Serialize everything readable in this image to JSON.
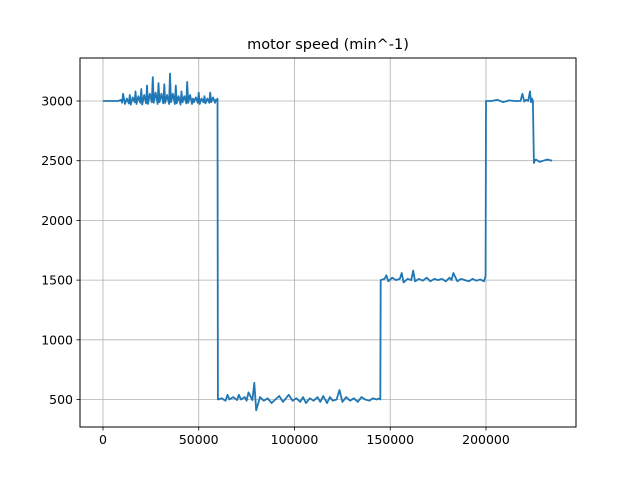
{
  "chart_data": {
    "type": "line",
    "title": "motor speed (min^-1)",
    "xlabel": "",
    "ylabel": "",
    "xlim": [
      -12000,
      247000
    ],
    "ylim": [
      270,
      3360
    ],
    "x_ticks": [
      0,
      50000,
      100000,
      150000,
      200000
    ],
    "x_tick_labels": [
      "0",
      "50000",
      "100000",
      "150000",
      "200000"
    ],
    "y_ticks": [
      500,
      1000,
      1500,
      2000,
      2500,
      3000
    ],
    "y_tick_labels": [
      "500",
      "1000",
      "1500",
      "2000",
      "2500",
      "3000"
    ],
    "grid": true,
    "line_color": "#1f77b4",
    "series": [
      {
        "x": [
          0,
          8000,
          9500,
          10000,
          10500,
          11500,
          12500,
          13500,
          14000,
          14500,
          15500,
          16500,
          17000,
          17500,
          18500,
          19500,
          20000,
          20500,
          21500,
          22500,
          23000,
          23500,
          24500,
          25500,
          26000,
          26500,
          27500,
          28500,
          29000,
          29500,
          30500,
          31500,
          32000,
          32500,
          33500,
          34500,
          35000,
          35500,
          36500,
          37500,
          38000,
          38500,
          39500,
          40500,
          41000,
          41500,
          42500,
          43500,
          44000,
          44500,
          45500,
          46500,
          47000,
          47500,
          48500,
          49500,
          50000,
          50500,
          51500,
          52500,
          53000,
          53500,
          54500,
          55500,
          56000,
          56500,
          57500,
          58500,
          59000,
          59500,
          59800,
          60000,
          62000,
          64000,
          65000,
          66000,
          68000,
          70000,
          71000,
          72000,
          74000,
          75000,
          76000,
          78000,
          79000,
          80000,
          82000,
          84000,
          86000,
          88000,
          90000,
          92000,
          94000,
          95500,
          97000,
          99000,
          101000,
          103000,
          104500,
          106000,
          108000,
          110000,
          112000,
          113500,
          115000,
          117000,
          118500,
          120000,
          122000,
          123500,
          125000,
          127000,
          129000,
          131000,
          133000,
          135000,
          137000,
          139000,
          141000,
          143000,
          144500,
          144800,
          145000,
          147000,
          148000,
          149000,
          151000,
          153000,
          155000,
          156000,
          157000,
          159000,
          161000,
          162000,
          163000,
          165000,
          167000,
          169000,
          171000,
          173000,
          175000,
          177000,
          179000,
          181000,
          182000,
          183000,
          185000,
          187000,
          189000,
          191000,
          193000,
          195000,
          197000,
          199000,
          199500,
          199800,
          200000,
          203000,
          206000,
          209000,
          212000,
          215000,
          218000,
          219000,
          220000,
          221000,
          222000,
          223000,
          223500,
          224000,
          224500,
          225000,
          225500,
          226000,
          228000,
          230000,
          232000,
          234500
        ],
        "y": [
          3000,
          3000,
          3010,
          2985,
          3060,
          2975,
          3020,
          2980,
          3050,
          2970,
          3030,
          2990,
          3080,
          2975,
          3040,
          2985,
          3100,
          2970,
          3050,
          2980,
          3130,
          2975,
          3060,
          2990,
          3200,
          2985,
          3070,
          2975,
          3150,
          2990,
          3060,
          2980,
          3140,
          2985,
          3050,
          2975,
          3230,
          2990,
          3060,
          2975,
          3130,
          2980,
          3040,
          2970,
          3080,
          2990,
          3040,
          2980,
          3160,
          2985,
          3050,
          2975,
          3020,
          2990,
          3030,
          2985,
          3070,
          2975,
          3020,
          2990,
          3040,
          2980,
          3020,
          2985,
          3070,
          2990,
          3030,
          2985,
          3010,
          3000,
          3020,
          500,
          510,
          490,
          540,
          500,
          520,
          495,
          540,
          500,
          520,
          490,
          560,
          495,
          640,
          410,
          520,
          490,
          510,
          470,
          500,
          530,
          480,
          510,
          540,
          490,
          510,
          480,
          520,
          470,
          510,
          490,
          520,
          480,
          530,
          470,
          520,
          490,
          500,
          580,
          480,
          520,
          490,
          510,
          480,
          520,
          500,
          490,
          510,
          500,
          510,
          500,
          1500,
          1510,
          1540,
          1490,
          1520,
          1500,
          1510,
          1560,
          1480,
          1510,
          1500,
          1580,
          1490,
          1510,
          1495,
          1520,
          1490,
          1510,
          1500,
          1510,
          1490,
          1520,
          1500,
          1560,
          1490,
          1510,
          1500,
          1490,
          1510,
          1495,
          1505,
          1490,
          1520,
          1530,
          3000,
          3000,
          3010,
          2990,
          3005,
          3000,
          3000,
          3060,
          2995,
          3010,
          3000,
          3080,
          2990,
          3020,
          3000,
          2480,
          2500,
          2510,
          2490,
          2500,
          2510,
          2500
        ]
      }
    ]
  }
}
